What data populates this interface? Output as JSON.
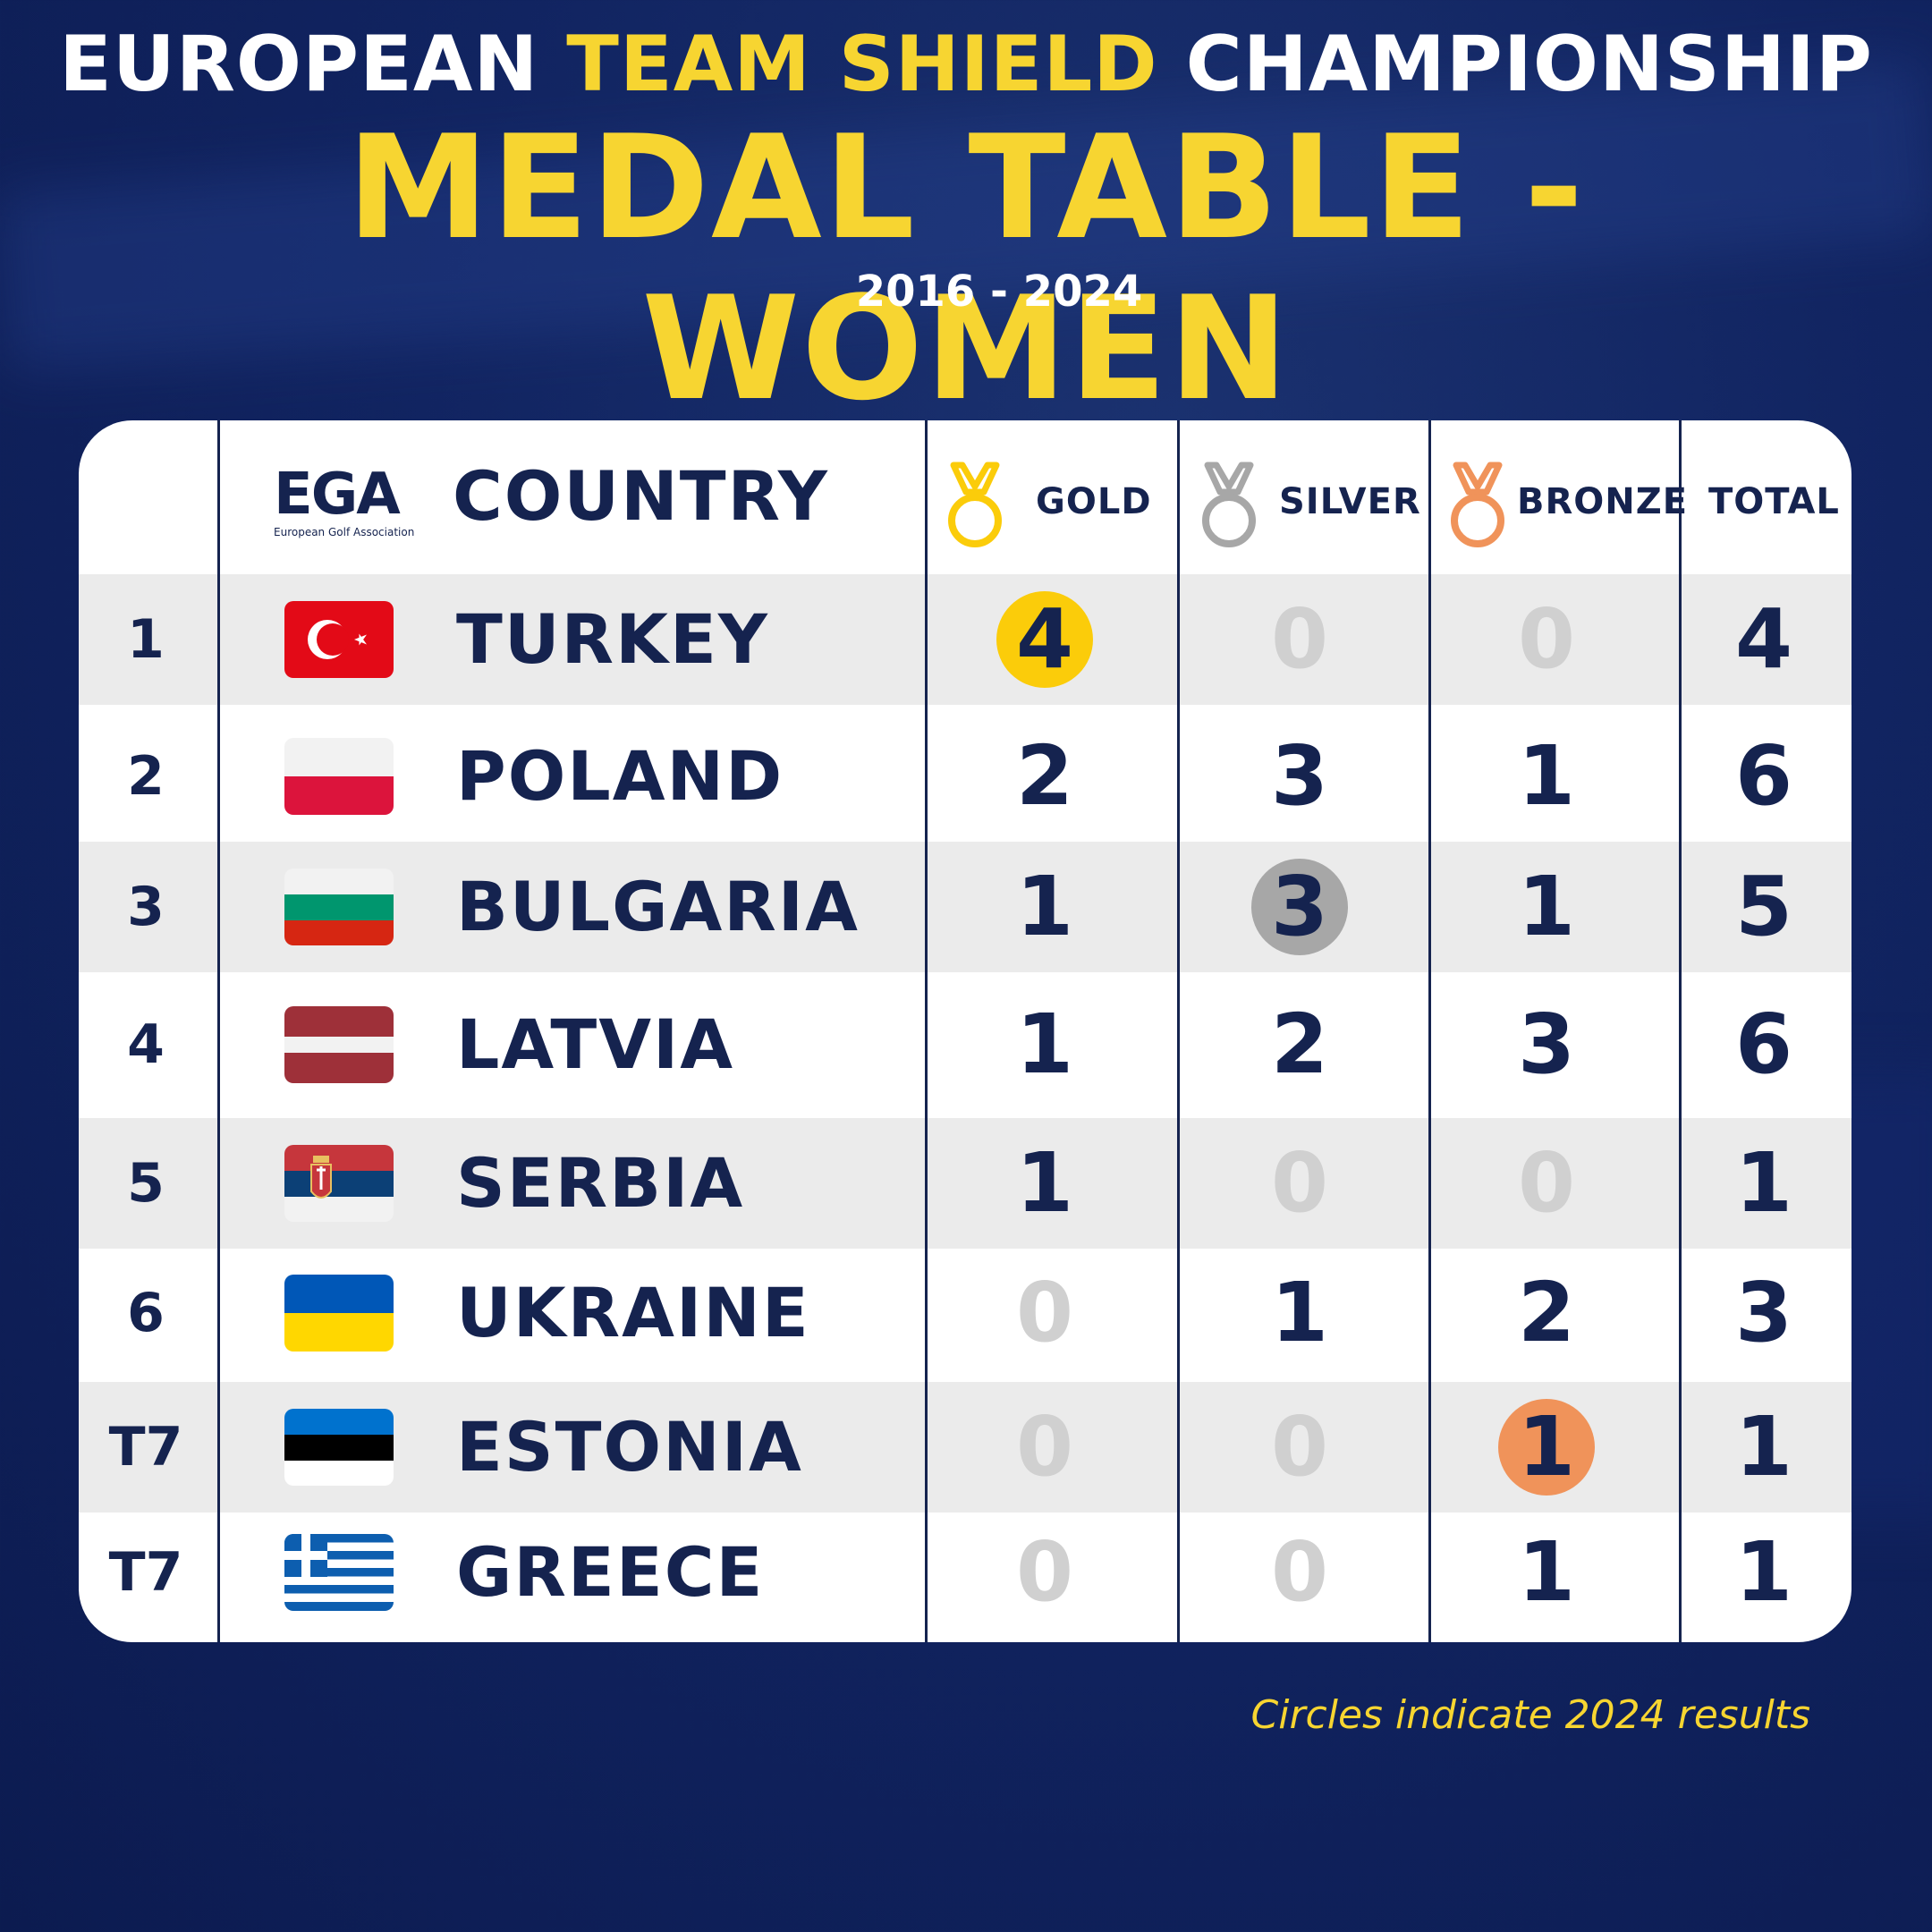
{
  "header": {
    "title_part1": "EUROPEAN ",
    "title_highlight": "TEAM SHIELD",
    "title_part2": " CHAMPIONSHIP",
    "title_main": "MEDAL TABLE - WOMEN",
    "years": "2016 - 2024"
  },
  "logo": {
    "text": "EGA",
    "subtext": "European Golf Association"
  },
  "table": {
    "country_header": "COUNTRY",
    "gold_label": "GOLD",
    "silver_label": "SILVER",
    "bronze_label": "BRONZE",
    "total_label": "TOTAL",
    "rows": [
      {
        "rank": "1",
        "country": "TURKEY",
        "flag": "turkey-flag",
        "gold": "4",
        "silver": "0",
        "bronze": "0",
        "total": "4",
        "circled": "gold"
      },
      {
        "rank": "2",
        "country": "POLAND",
        "flag": "poland-flag",
        "gold": "2",
        "silver": "3",
        "bronze": "1",
        "total": "6",
        "circled": ""
      },
      {
        "rank": "3",
        "country": "BULGARIA",
        "flag": "bulgaria-flag",
        "gold": "1",
        "silver": "3",
        "bronze": "1",
        "total": "5",
        "circled": "silver"
      },
      {
        "rank": "4",
        "country": "LATVIA",
        "flag": "latvia-flag",
        "gold": "1",
        "silver": "2",
        "bronze": "3",
        "total": "6",
        "circled": ""
      },
      {
        "rank": "5",
        "country": "SERBIA",
        "flag": "serbia-flag",
        "gold": "1",
        "silver": "0",
        "bronze": "0",
        "total": "1",
        "circled": ""
      },
      {
        "rank": "6",
        "country": "UKRAINE",
        "flag": "ukraine-flag",
        "gold": "0",
        "silver": "1",
        "bronze": "2",
        "total": "3",
        "circled": ""
      },
      {
        "rank": "T7",
        "country": "ESTONIA",
        "flag": "estonia-flag",
        "gold": "0",
        "silver": "0",
        "bronze": "1",
        "total": "1",
        "circled": "bronze"
      },
      {
        "rank": "T7",
        "country": "GREECE",
        "flag": "greece-flag",
        "gold": "0",
        "silver": "0",
        "bronze": "1",
        "total": "1",
        "circled": ""
      }
    ]
  },
  "colors": {
    "background": "#112461",
    "accent_yellow": "#f7d531",
    "navy_text": "#15234f",
    "gold": "#fbcc0a",
    "silver": "#a7a7a7",
    "bronze": "#f0935a",
    "zero_grey": "#d0d0d0"
  },
  "footnote": "Circles indicate 2024 results"
}
